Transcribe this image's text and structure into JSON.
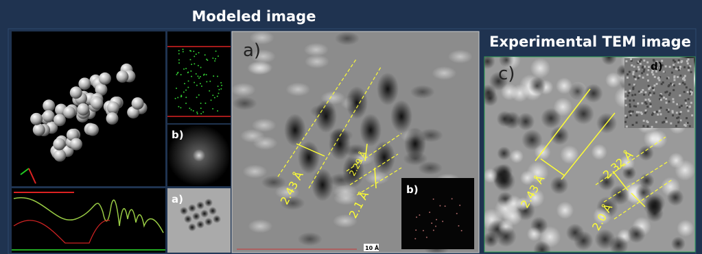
{
  "modeled_title": "Modeled image",
  "experimental_title": "Experimental TEM image",
  "left_panels": {
    "fft_label": "b)",
    "sim_label": "a)"
  },
  "modeled_panel": {
    "label": "a)",
    "inset_label": "b)",
    "measurements": [
      "2.43 Å",
      "2.29 Å",
      "2.1 Å"
    ],
    "scale_bar": "10 Å"
  },
  "experimental_panel": {
    "label": "c)",
    "inset_label": "d)",
    "measurements": [
      "2.43 Å",
      "2.32 Å",
      "2.0 Å"
    ]
  }
}
